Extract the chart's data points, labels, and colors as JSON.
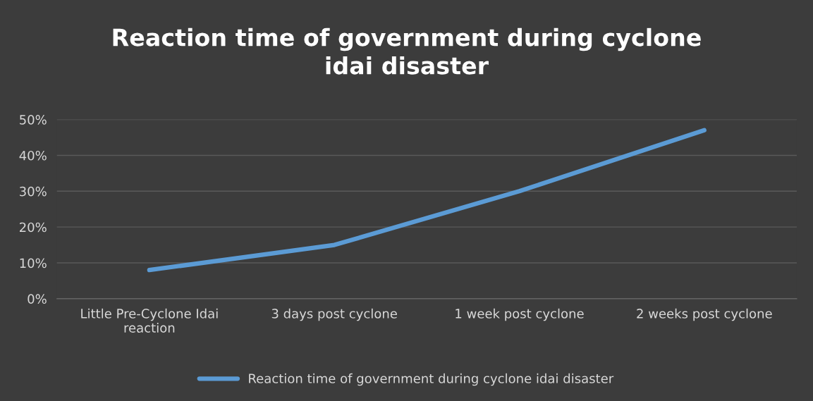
{
  "chart_data": {
    "type": "line",
    "title": "Reaction time of government during cyclone\nidai disaster",
    "categories": [
      "Little Pre-Cyclone Idai\nreaction",
      "3 days post cyclone",
      "1 week post cyclone",
      "2 weeks post cyclone"
    ],
    "series": [
      {
        "name": "Reaction time of government during cyclone idai disaster",
        "color": "#5b9bd5",
        "values": [
          8,
          15,
          30,
          47
        ]
      }
    ],
    "ylim": [
      0,
      50
    ],
    "yticks": [
      {
        "value": 0,
        "label": "0%"
      },
      {
        "value": 10,
        "label": "10%"
      },
      {
        "value": 20,
        "label": "20%"
      },
      {
        "value": 30,
        "label": "30%"
      },
      {
        "value": 40,
        "label": "40%"
      },
      {
        "value": 50,
        "label": "50%"
      }
    ],
    "grid": "y",
    "legend": "bottom",
    "marker": "none",
    "line_style": "solid"
  }
}
